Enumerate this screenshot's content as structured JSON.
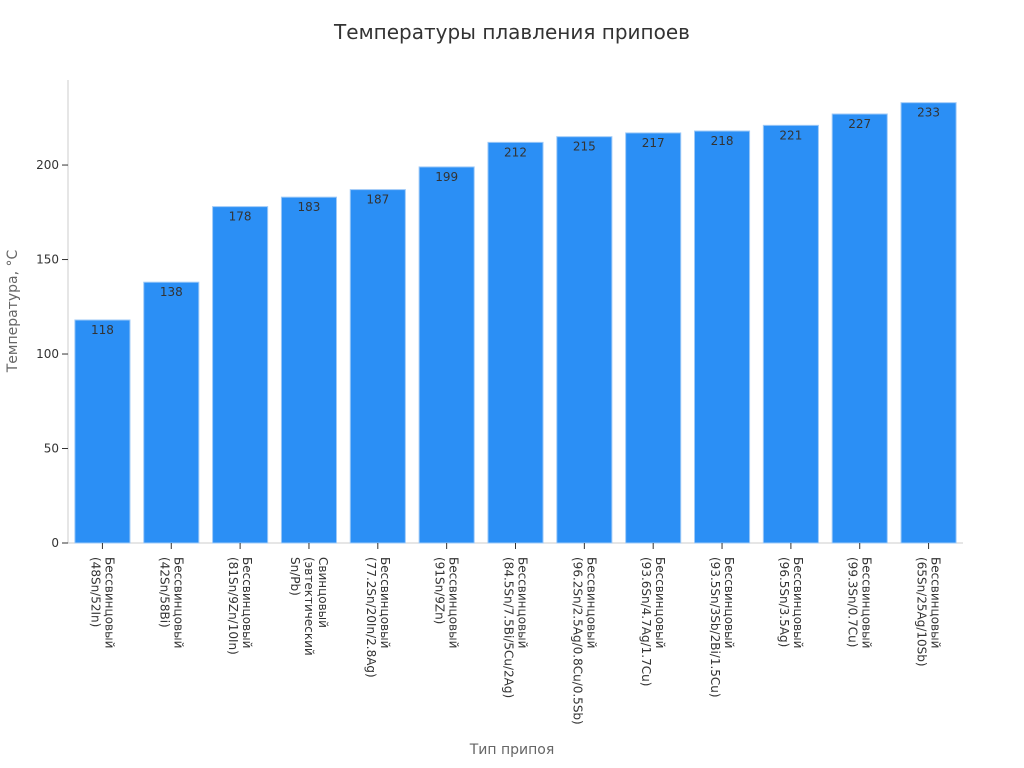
{
  "chart_data": {
    "type": "bar",
    "title": "Температуры плавления припоев",
    "xlabel": "Тип припоя",
    "ylabel": "Температура, °C",
    "ylim": [
      0,
      245
    ],
    "yticks": [
      0,
      50,
      100,
      150,
      200
    ],
    "grid": false,
    "legend": "none",
    "bar_color": "#2b8ff5",
    "categories": [
      "Бессвинцовый (48Sn/52In)",
      "Бессвинцовый (42Sn/58Bi)",
      "Бессвинцовый (81Sn/9Zn/10In)",
      "Свинцовый (эвтектический Sn/Pb)",
      "Бессвинцовый (77.2Sn/20In/2.8Ag)",
      "Бессвинцовый (91Sn/9Zn)",
      "Бессвинцовый (84.5Sn/7.5Bi/5Cu/2Ag)",
      "Бессвинцовый (96.2Sn/2.5Ag/0.8Cu/0.5Sb)",
      "Бессвинцовый (93.6Sn/4.7Ag/1.7Cu)",
      "Бессвинцовый (93.5Sn/3Sb/2Bi/1.5Cu)",
      "Бессвинцовый (96.5Sn/3.5Ag)",
      "Бессвинцовый (99.3Sn/0.7Cu)",
      "Бессвинцовый (65Sn/25Ag/10Sb)"
    ],
    "category_lines": [
      [
        "Бессвинцовый",
        "(48Sn/52In)"
      ],
      [
        "Бессвинцовый",
        "(42Sn/58Bi)"
      ],
      [
        "Бессвинцовый",
        "(81Sn/9Zn/10In)"
      ],
      [
        "Свинцовый",
        "(эвтектический",
        "Sn/Pb)"
      ],
      [
        "Бессвинцовый",
        "(77.2Sn/20In/2.8Ag)"
      ],
      [
        "Бессвинцовый",
        "(91Sn/9Zn)"
      ],
      [
        "Бессвинцовый",
        "(84.5Sn/7.5Bi/5Cu/2Ag)"
      ],
      [
        "Бессвинцовый",
        "(96.2Sn/2.5Ag/0.8Cu/0.5Sb)"
      ],
      [
        "Бессвинцовый",
        "(93.6Sn/4.7Ag/1.7Cu)"
      ],
      [
        "Бессвинцовый",
        "(93.5Sn/3Sb/2Bi/1.5Cu)"
      ],
      [
        "Бессвинцовый",
        "(96.5Sn/3.5Ag)"
      ],
      [
        "Бессвинцовый",
        "(99.3Sn/0.7Cu)"
      ],
      [
        "Бессвинцовый",
        "(65Sn/25Ag/10Sb)"
      ]
    ],
    "values": [
      118,
      138,
      178,
      183,
      187,
      199,
      212,
      215,
      217,
      218,
      221,
      227,
      233
    ]
  }
}
